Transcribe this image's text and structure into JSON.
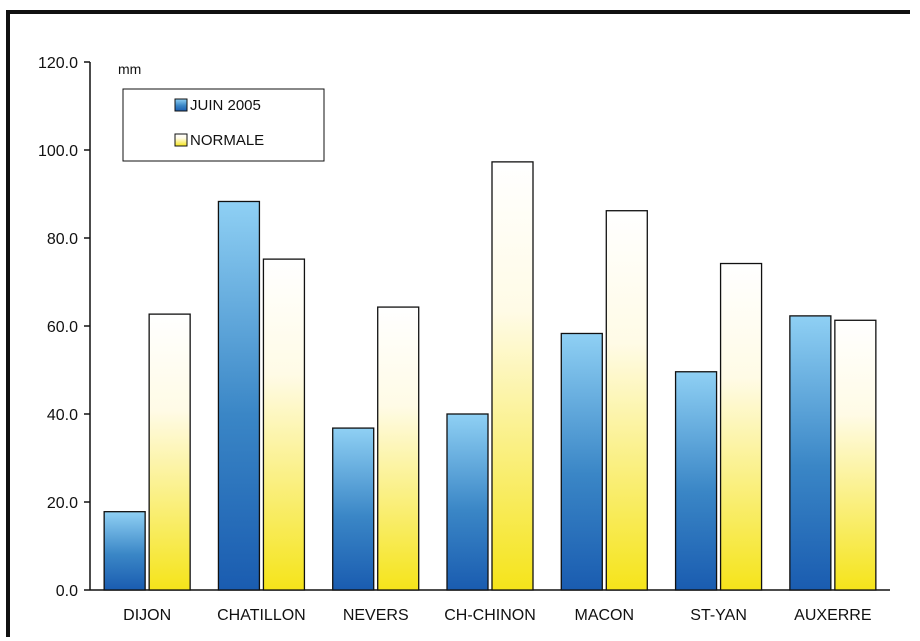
{
  "chart_data": {
    "type": "bar",
    "unit_label": "mm",
    "categories": [
      "DIJON",
      "CHATILLON",
      "NEVERS",
      "CH-CHINON",
      "MACON",
      "ST-YAN",
      "AUXERRE"
    ],
    "series": [
      {
        "name": "JUIN 2005",
        "values": [
          17.8,
          88.3,
          36.8,
          40.0,
          58.3,
          49.6,
          62.3
        ],
        "color": "#2a6fb8"
      },
      {
        "name": "NORMALE",
        "values": [
          62.7,
          75.2,
          64.3,
          97.3,
          86.2,
          74.2,
          61.3
        ],
        "color": "#f5e81a"
      }
    ],
    "y_ticks": [
      "0.0",
      "20.0",
      "40.0",
      "60.0",
      "80.0",
      "100.0",
      "120.0"
    ],
    "ylim": [
      0,
      120
    ],
    "grid": false,
    "legend_position": "top-left"
  }
}
